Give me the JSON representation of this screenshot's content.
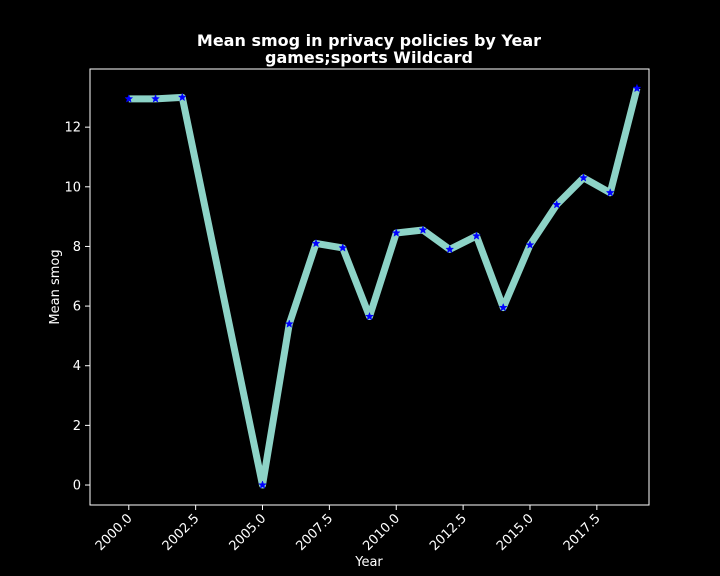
{
  "chart_data": {
    "type": "line",
    "title": "Mean smog in privacy policies by Year",
    "subtitle": "games;sports Wildcard",
    "xlabel": "Year",
    "ylabel": "Mean smog",
    "xlim": [
      1998.55,
      2019.45
    ],
    "ylim": [
      -0.67,
      13.95
    ],
    "xticks": [
      2000.0,
      2002.5,
      2005.0,
      2007.5,
      2010.0,
      2012.5,
      2015.0,
      2017.5
    ],
    "xtick_labels": [
      "2000.0",
      "2002.5",
      "2005.0",
      "2007.5",
      "2010.0",
      "2012.5",
      "2015.0",
      "2017.5"
    ],
    "yticks": [
      0,
      2,
      4,
      6,
      8,
      10,
      12
    ],
    "ytick_labels": [
      "0",
      "2",
      "4",
      "6",
      "8",
      "10",
      "12"
    ],
    "grid": false,
    "background_color": "#000000",
    "line_color": "#8dd3c7",
    "marker_color": "#0000ff",
    "marker": "star",
    "series": [
      {
        "x": [
          2000,
          2001,
          2002,
          2005,
          2006,
          2007,
          2008,
          2009,
          2010,
          2011,
          2012,
          2013,
          2014,
          2015,
          2016,
          2017,
          2018,
          2019
        ],
        "values": [
          12.95,
          12.95,
          13.0,
          0.0,
          5.4,
          8.1,
          7.95,
          5.65,
          8.45,
          8.55,
          7.9,
          8.35,
          5.95,
          8.05,
          9.4,
          10.3,
          9.8,
          13.3
        ]
      }
    ]
  }
}
